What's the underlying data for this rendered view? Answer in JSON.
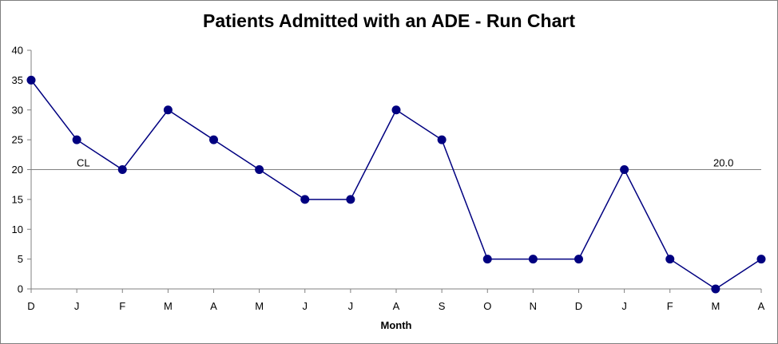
{
  "chart_data": {
    "type": "line",
    "title": "Patients Admitted with an ADE - Run Chart",
    "xlabel": "Month",
    "ylabel": "",
    "categories": [
      "D",
      "J",
      "F",
      "M",
      "A",
      "M",
      "J",
      "J",
      "A",
      "S",
      "O",
      "N",
      "D",
      "J",
      "F",
      "M",
      "A"
    ],
    "series": [
      {
        "values": [
          35,
          25,
          20,
          30,
          25,
          20,
          15,
          15,
          30,
          25,
          5,
          5,
          5,
          20,
          5,
          0,
          5
        ]
      }
    ],
    "ylim": [
      0,
      40
    ],
    "yticks": [
      0,
      5,
      10,
      15,
      20,
      25,
      30,
      35,
      40
    ],
    "center_line": {
      "label": "CL",
      "value": 20,
      "value_label": "20.0"
    },
    "grid": false,
    "legend": "none",
    "colors": {
      "series": "#000080",
      "center_line": "#808080",
      "axis": "#808080"
    }
  }
}
